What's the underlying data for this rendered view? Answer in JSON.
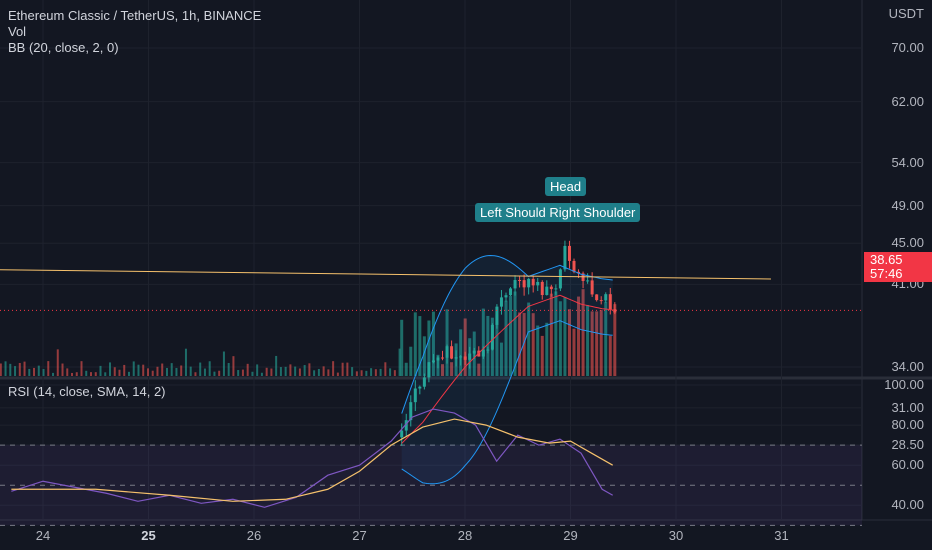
{
  "header": {
    "title": "Ethereum Classic / TetherUS, 1h, BINANCE",
    "vol_label": "Vol",
    "bb_label": "BB (20, close, 2, 0)",
    "rsi_label": "RSI (14, close, SMA, 14, 2)",
    "currency": "USDT"
  },
  "price_axis": [
    "70.00",
    "62.00",
    "54.00",
    "49.00",
    "45.00",
    "41.00",
    "34.00",
    "31.00",
    "28.50"
  ],
  "rsi_axis": [
    "100.00",
    "80.00",
    "60.00",
    "40.00"
  ],
  "time_axis": [
    {
      "label": "24",
      "bold": false
    },
    {
      "label": "25",
      "bold": true
    },
    {
      "label": "26",
      "bold": false
    },
    {
      "label": "27",
      "bold": false
    },
    {
      "label": "28",
      "bold": false
    },
    {
      "label": "29",
      "bold": false
    },
    {
      "label": "30",
      "bold": false
    },
    {
      "label": "31",
      "bold": false
    }
  ],
  "last_price": {
    "value": "38.65",
    "countdown": "57:46"
  },
  "annotations": {
    "head": "Head",
    "shoulders": "Left Should Right Shoulder"
  },
  "colors": {
    "up": "#26a69a",
    "down": "#ef5350",
    "bb": "#2196f3",
    "bb_basis": "#f23645",
    "rsi": "#7e57c2",
    "rsi_ma": "#f5c16c",
    "neckline": "#f5c16c",
    "background": "#131722"
  },
  "chart_data": {
    "type": "line",
    "panes": [
      "price",
      "rsi"
    ],
    "price_log_scale": true,
    "price_ylim": [
      28,
      78
    ],
    "rsi_ylim": [
      38,
      100
    ],
    "rsi_bands": [
      70,
      50,
      30
    ],
    "x": [
      "24",
      "25",
      "26",
      "27",
      "28",
      "29",
      "30",
      "31"
    ],
    "series": [
      {
        "name": "BB (20, close, 2, 0)",
        "pane": "price",
        "x": [
          27.4,
          27.6,
          27.8,
          28.0,
          28.3,
          28.6,
          28.9,
          29.1,
          29.3,
          29.4
        ],
        "values": [
          28.6,
          30.0,
          32.0,
          34.0,
          36.5,
          39.0,
          40.0,
          39.2,
          38.8,
          38.7
        ]
      },
      {
        "name": "close",
        "pane": "price",
        "x": [
          23.7,
          24.5,
          25.5,
          26.5,
          27.3,
          27.4,
          27.5,
          27.6,
          27.7,
          27.8,
          28.0,
          28.2,
          28.35,
          28.45,
          28.6,
          28.8,
          28.9,
          28.95,
          29.05,
          29.15,
          29.25,
          29.35,
          29.4
        ],
        "values": [
          27.2,
          27.2,
          27.2,
          27.2,
          27.3,
          29.0,
          31.5,
          33.5,
          34.6,
          35.0,
          34.8,
          35.5,
          40.0,
          41.5,
          41.0,
          40.5,
          42.0,
          44.5,
          42.5,
          41.0,
          40.0,
          39.5,
          38.65
        ]
      },
      {
        "name": "RSI (14, close, SMA, 14, 2)",
        "pane": "rsi",
        "x": [
          23.7,
          24.0,
          24.3,
          24.6,
          24.9,
          25.2,
          25.5,
          25.8,
          26.1,
          26.4,
          26.7,
          27.0,
          27.3,
          27.5,
          27.7,
          27.9,
          28.1,
          28.3,
          28.5,
          28.7,
          28.9,
          29.1,
          29.3,
          29.4
        ],
        "values": [
          47,
          52,
          49,
          46,
          42,
          45,
          41,
          43,
          39,
          44,
          55,
          60,
          72,
          84,
          88,
          86,
          80,
          62,
          75,
          70,
          73,
          66,
          48,
          45
        ]
      },
      {
        "name": "RSI-based MA",
        "pane": "rsi",
        "x": [
          23.7,
          24.5,
          25.2,
          25.8,
          26.3,
          26.7,
          27.0,
          27.3,
          27.6,
          27.9,
          28.2,
          28.5,
          28.8,
          29.0,
          29.2,
          29.4
        ],
        "values": [
          48,
          48,
          45,
          42,
          43,
          48,
          57,
          70,
          79,
          83,
          80,
          74,
          71,
          72,
          66,
          60
        ]
      }
    ],
    "neckline": {
      "x": [
        22.6,
        30.9
      ],
      "values": [
        42.5,
        41.5
      ]
    }
  }
}
